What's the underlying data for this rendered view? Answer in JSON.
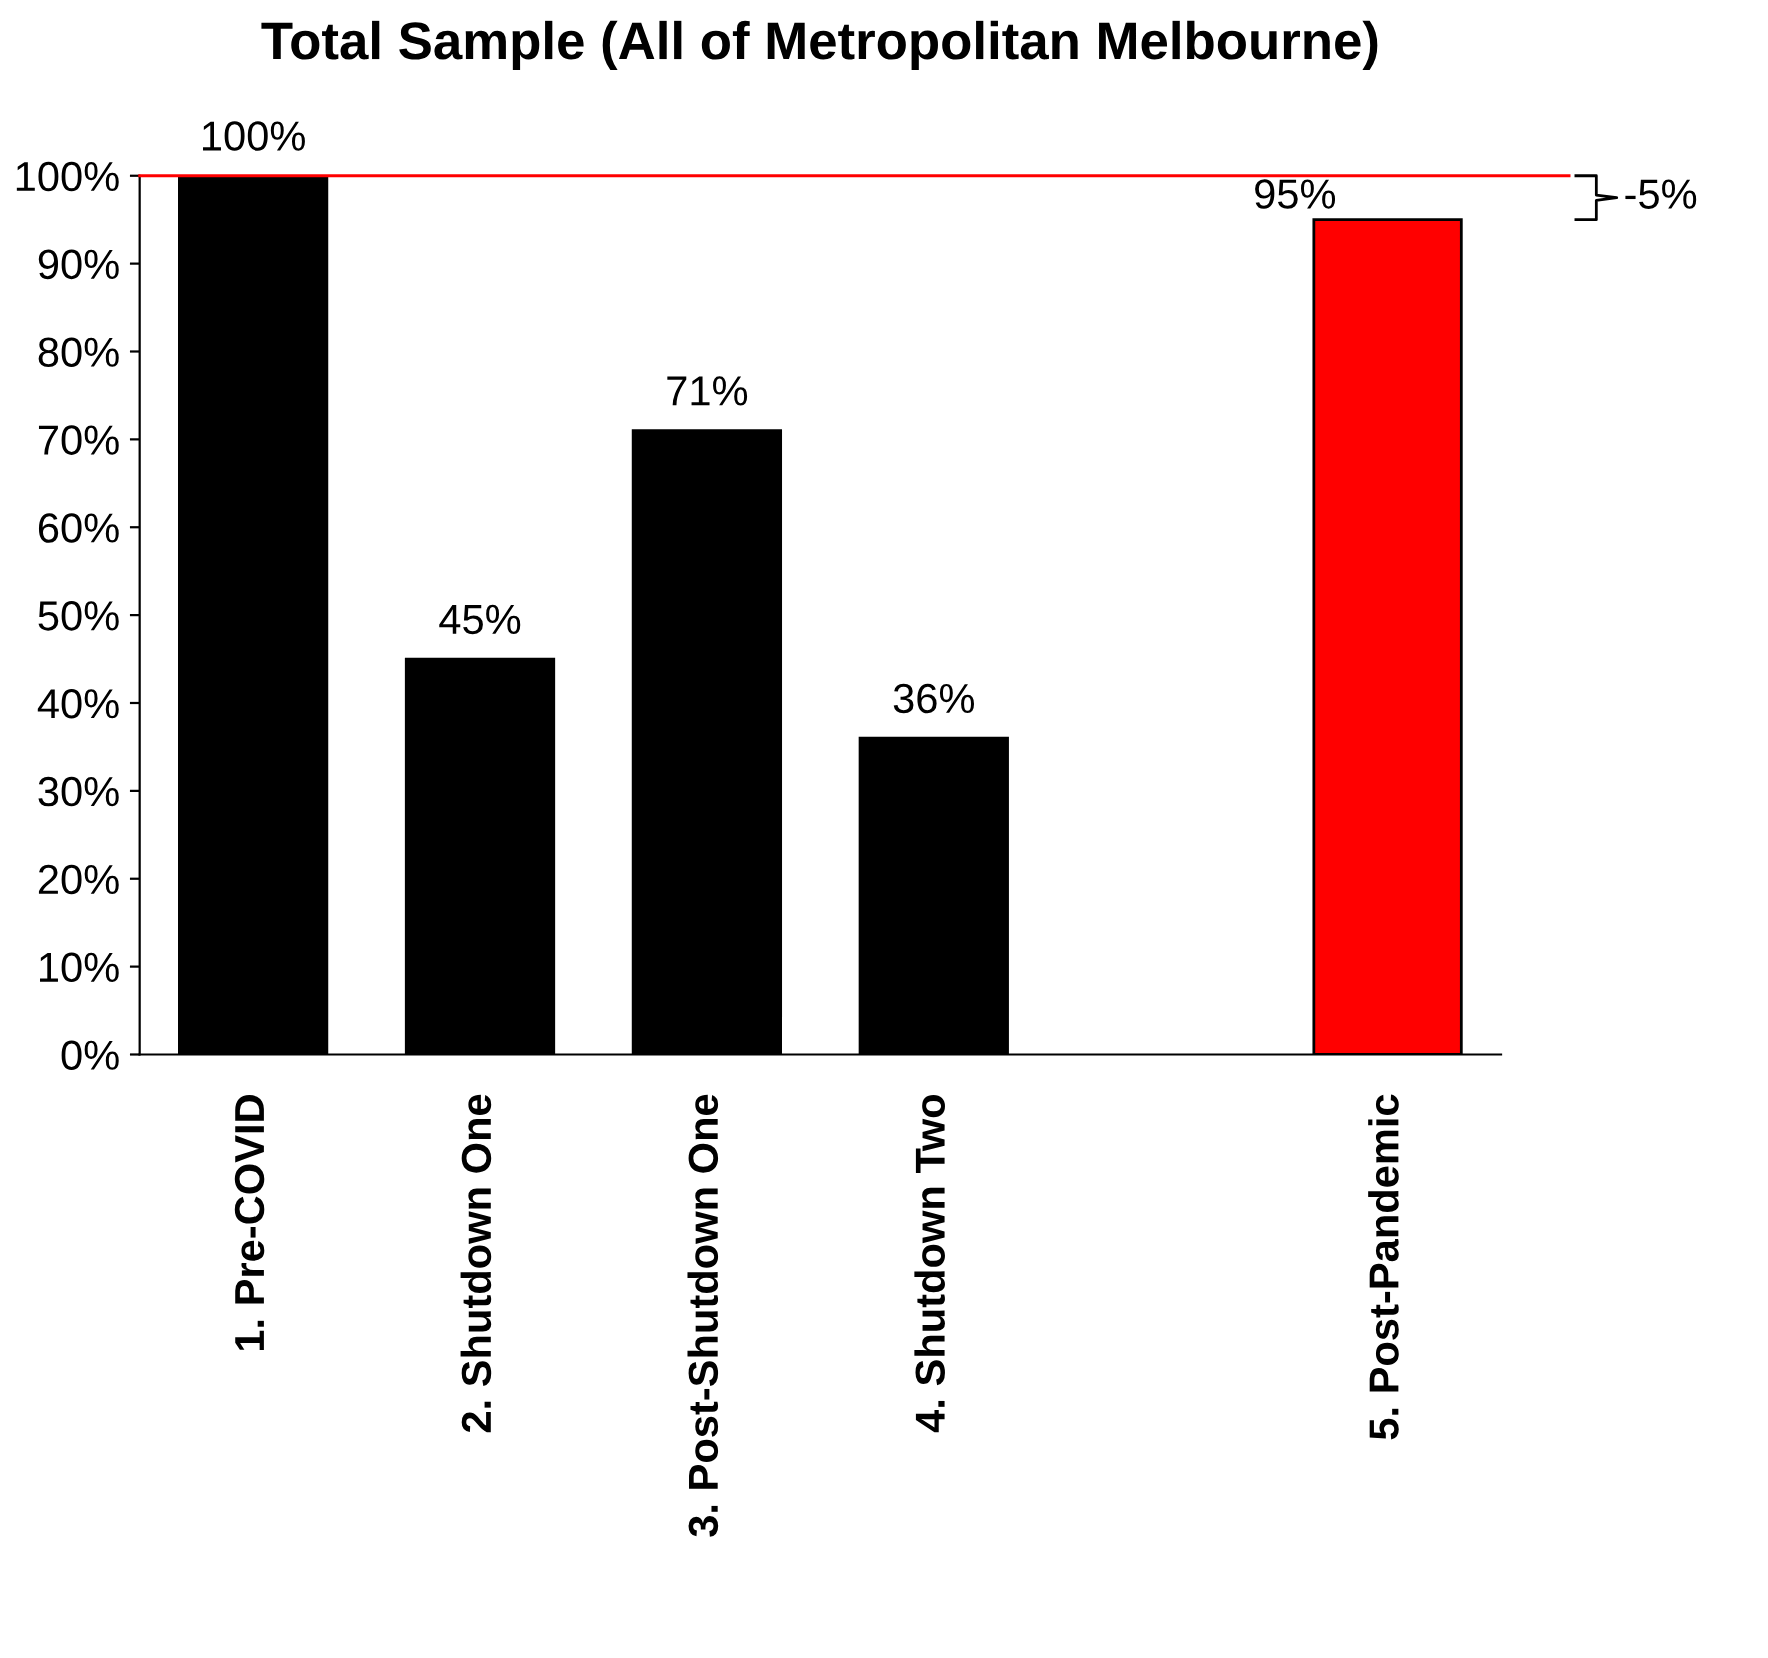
{
  "chart_data": {
    "type": "bar",
    "title": "Total Sample (All of Metropolitan Melbourne)",
    "categories": [
      "1. Pre-COVID",
      "2. Shutdown One",
      "3. Post-Shutdown One",
      "4. Shutdown Two",
      null,
      "5. Post-Pandemic"
    ],
    "values": [
      100,
      45,
      71,
      36,
      null,
      95
    ],
    "colors": [
      "#000000",
      "#000000",
      "#000000",
      "#000000",
      "#000000",
      "#ff0000"
    ],
    "value_labels": [
      "100%",
      "45%",
      "71%",
      "36%",
      null,
      "95%"
    ],
    "ylim": [
      0,
      100
    ],
    "yticks": [
      {
        "value": 0,
        "label": "0%"
      },
      {
        "value": 10,
        "label": "10%"
      },
      {
        "value": 20,
        "label": "20%"
      },
      {
        "value": 30,
        "label": "30%"
      },
      {
        "value": 40,
        "label": "40%"
      },
      {
        "value": 50,
        "label": "50%"
      },
      {
        "value": 60,
        "label": "60%"
      },
      {
        "value": 70,
        "label": "70%"
      },
      {
        "value": 80,
        "label": "80%"
      },
      {
        "value": 90,
        "label": "90%"
      },
      {
        "value": 100,
        "label": "100%"
      }
    ],
    "ref_lines": [
      {
        "axis": "y",
        "value": 100,
        "color": "#ff0000"
      }
    ],
    "annotations": [
      "-5%"
    ],
    "grid": false,
    "legend": false
  }
}
